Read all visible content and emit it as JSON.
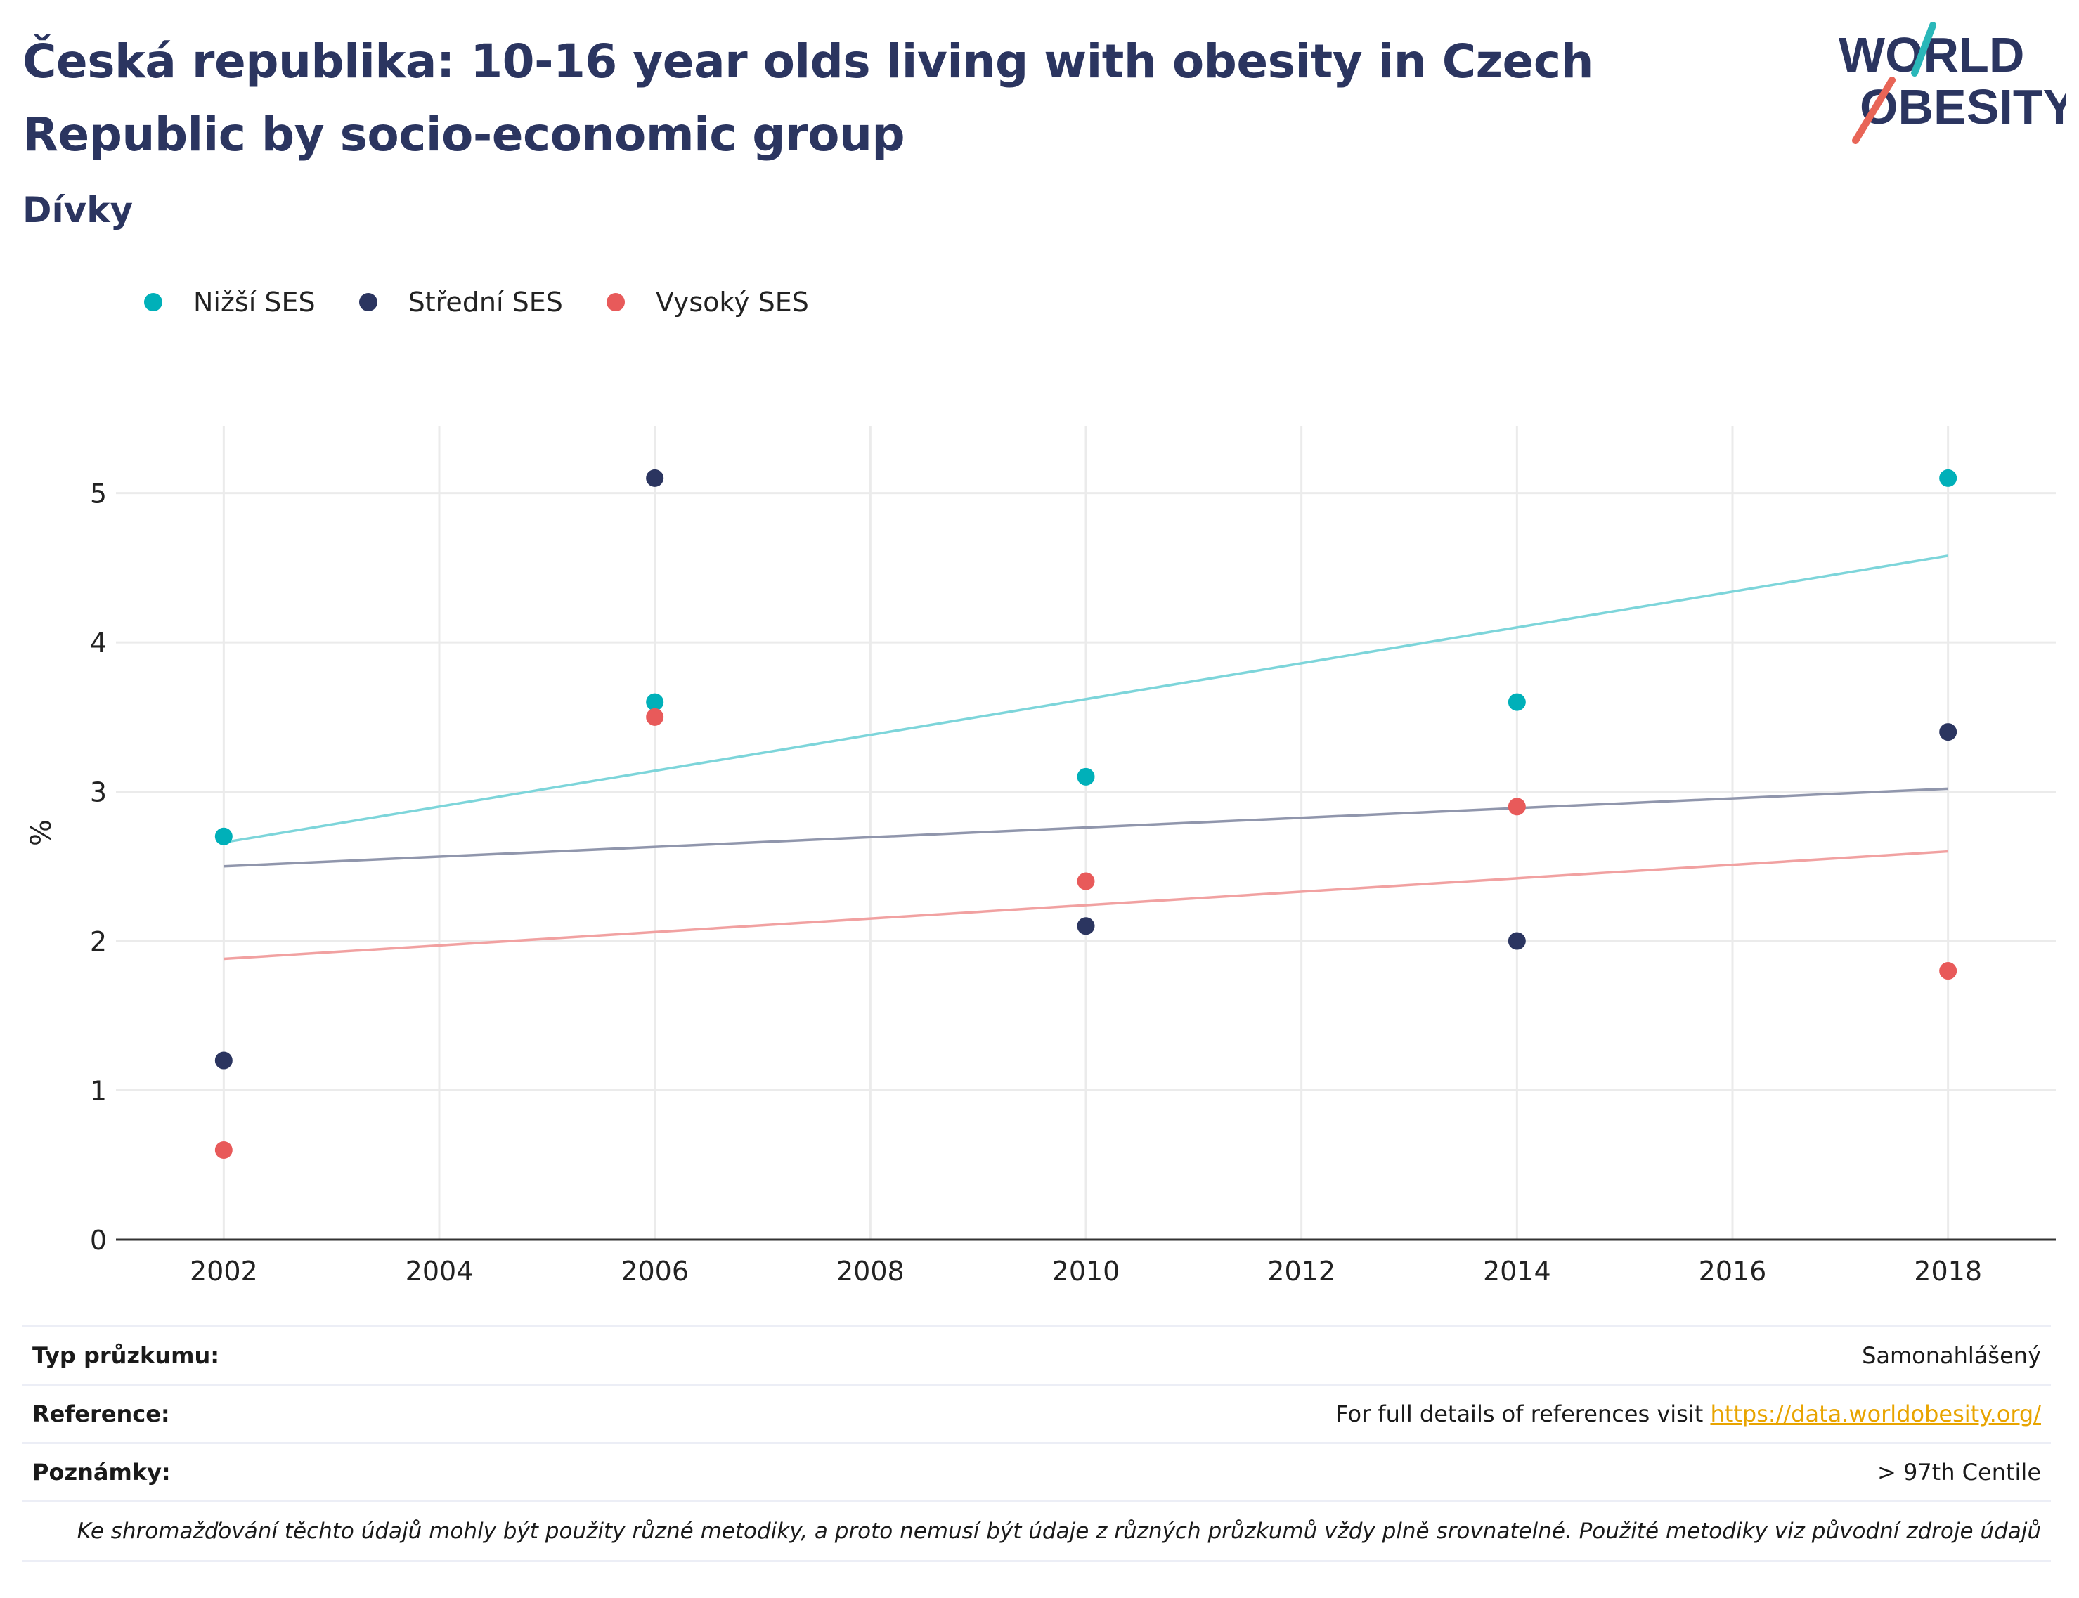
{
  "header": {
    "title": "Česká republika: 10-16 year olds living with obesity in Czech Republic by socio-economic group",
    "subtitle": "Dívky"
  },
  "logo": {
    "line1": "WORLD",
    "line2": "OBESITY",
    "colors": [
      "#2b3560",
      "#2ab7b9",
      "#e86557"
    ]
  },
  "legend": [
    {
      "label": "Nižší SES",
      "color": "#00b0b9"
    },
    {
      "label": "Střední SES",
      "color": "#2b3560"
    },
    {
      "label": "Vysoký SES",
      "color": "#e85a5a"
    }
  ],
  "chart_data": {
    "type": "scatter",
    "title": "Česká republika: 10-16 year olds living with obesity in Czech Republic by socio-economic group",
    "subtitle": "Dívky",
    "xlabel": "",
    "ylabel": "%",
    "xlim": [
      2001,
      2019
    ],
    "ylim": [
      0,
      5.45
    ],
    "x_ticks": [
      "2002",
      "2004",
      "2006",
      "2008",
      "2010",
      "2012",
      "2014",
      "2016",
      "2018"
    ],
    "y_ticks": [
      "0",
      "1",
      "2",
      "3",
      "4",
      "5"
    ],
    "grid": true,
    "legend_position": "top-left",
    "series": [
      {
        "name": "Nižší SES",
        "color": "#00b0b9",
        "trend_color": "#7dd5da",
        "x": [
          2002,
          2006,
          2010,
          2014,
          2018
        ],
        "y": [
          2.7,
          3.6,
          3.1,
          3.6,
          5.1
        ],
        "trend": [
          [
            2002,
            2.66
          ],
          [
            2018,
            4.58
          ]
        ]
      },
      {
        "name": "Střední SES",
        "color": "#2b3560",
        "trend_color": "#9096ac",
        "x": [
          2002,
          2006,
          2010,
          2014,
          2018
        ],
        "y": [
          1.2,
          5.1,
          2.1,
          2.0,
          3.4
        ],
        "trend": [
          [
            2002,
            2.5
          ],
          [
            2018,
            3.02
          ]
        ]
      },
      {
        "name": "Vysoký SES",
        "color": "#e85a5a",
        "trend_color": "#f1a1a1",
        "x": [
          2002,
          2006,
          2010,
          2014,
          2018
        ],
        "y": [
          0.6,
          3.5,
          2.4,
          2.9,
          1.8
        ],
        "trend": [
          [
            2002,
            1.88
          ],
          [
            2018,
            2.6
          ]
        ]
      }
    ]
  },
  "footer": {
    "survey_label": "Typ průzkumu:",
    "survey_value": "Samonahlášený",
    "reference_label": "Reference:",
    "reference_text": "For full details of references visit",
    "reference_link": "https://data.worldobesity.org/",
    "notes_label": "Poznámky:",
    "notes_value": "> 97th Centile",
    "disclaimer": "Ke shromažďování těchto údajů mohly být použity různé metodiky, a proto nemusí být údaje z různých průzkumů vždy plně srovnatelné. Použité metodiky viz původní zdroje údajů"
  }
}
